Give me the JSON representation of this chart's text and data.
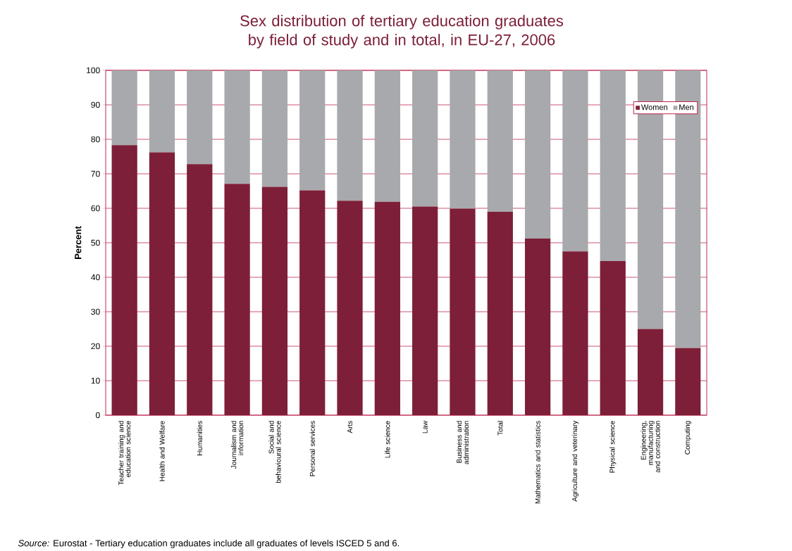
{
  "chart_data": {
    "type": "bar",
    "stacked": true,
    "title": "Sex distribution of tertiary education graduates by field of study and in total, in EU-27, 2006",
    "ylabel": "Percent",
    "categories": [
      "Teacher training and education science",
      "Health and Welfare",
      "Humanities",
      "Journalism and information",
      "Social and behavioural science",
      "Personal services",
      "Arts",
      "Life science",
      "Law",
      "Business and administration",
      "Total",
      "Mathematics and statistics",
      "Agriculture and veterinary",
      "Physical science",
      "Engineering, manufacturing and construction",
      "Computing"
    ],
    "series": [
      {
        "name": "Women",
        "color": "#7d1f38",
        "values": [
          78.3,
          76.2,
          72.8,
          67.1,
          66.2,
          65.2,
          62.2,
          61.9,
          60.5,
          59.9,
          59.0,
          51.2,
          47.5,
          44.7,
          25.0,
          19.5
        ]
      },
      {
        "name": "Men",
        "color": "#a7a9ac",
        "values": [
          21.7,
          23.8,
          27.2,
          32.9,
          33.8,
          34.8,
          37.8,
          38.1,
          39.5,
          40.1,
          41.0,
          48.8,
          52.5,
          55.3,
          75.0,
          80.5
        ]
      }
    ],
    "ylim": [
      0,
      100
    ],
    "yticks": [
      0,
      10,
      20,
      30,
      40,
      50,
      60,
      70,
      80,
      90,
      100
    ],
    "grid": "y",
    "legend": "top right",
    "annotations": [
      "*Source:* Eurostat - Tertiary education graduates include all graduates of levels ISCED 5 and 6."
    ]
  }
}
